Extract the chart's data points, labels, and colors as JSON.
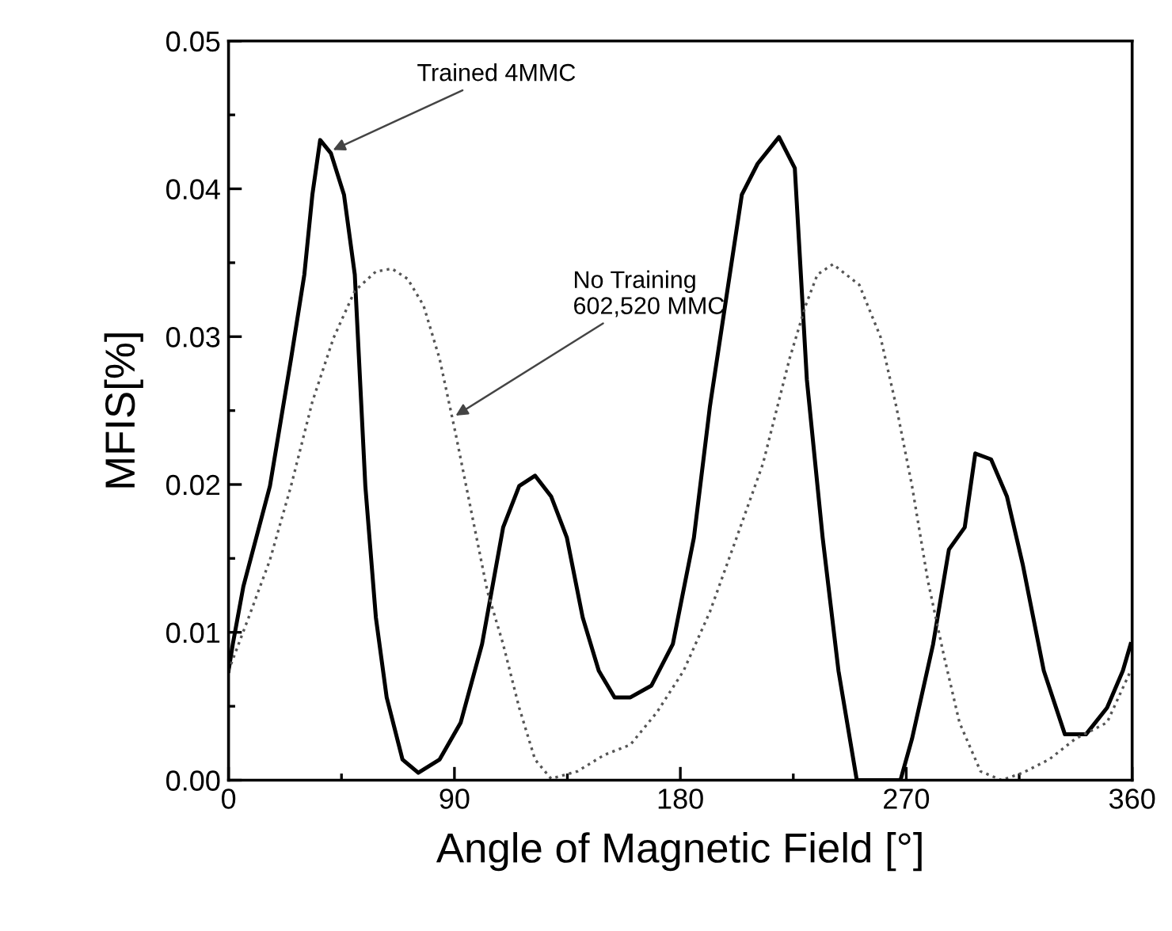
{
  "chart_data": {
    "type": "line",
    "xlabel": "Angle of Magnetic Field [°]",
    "ylabel": "MFIS[%]",
    "xlim": [
      0,
      360
    ],
    "xticks": [
      0,
      90,
      180,
      270,
      360
    ],
    "ylim": [
      0,
      0.05
    ],
    "yticks": [
      {
        "value": 0,
        "label": "0.00"
      },
      {
        "value": 0.01,
        "label": "0.01"
      },
      {
        "value": 0.02,
        "label": "0.02"
      },
      {
        "value": 0.03,
        "label": "0.03"
      },
      {
        "value": 0.04,
        "label": "0.04"
      },
      {
        "value": 0.05,
        "label": "0.05"
      }
    ],
    "grid": false,
    "marker": "none",
    "series": [
      {
        "color": "#000000",
        "line_style": "solid",
        "x": [
          0,
          1.7,
          5.9,
          16.5,
          24.9,
          30.2,
          33.4,
          36.5,
          40.8,
          46,
          50.3,
          54.5,
          58.7,
          63,
          69.3,
          75.6,
          84.1,
          92.5,
          101,
          109.4,
          115.8,
          122.1,
          128.5,
          134.8,
          141.1,
          147.5,
          153.8,
          160.1,
          168.5,
          177,
          185.4,
          191.8,
          198.1,
          204.5,
          210.8,
          219.3,
          225.6,
          230.4,
          236.7,
          243,
          250.3,
          267.7,
          272.3,
          280.7,
          287,
          293.3,
          297.5,
          303.8,
          310.1,
          316.4,
          324.8,
          333.2,
          341.6,
          350,
          356.3,
          359.4
        ],
        "values": [
          0.0074,
          0.0092,
          0.0131,
          0.0199,
          0.0285,
          0.0342,
          0.0396,
          0.0433,
          0.0424,
          0.0396,
          0.0342,
          0.0199,
          0.011,
          0.0056,
          0.0014,
          0.0005,
          0.0014,
          0.0039,
          0.0092,
          0.0171,
          0.0199,
          0.0206,
          0.0192,
          0.0164,
          0.011,
          0.0074,
          0.0056,
          0.0056,
          0.0064,
          0.0092,
          0.0164,
          0.0253,
          0.0324,
          0.0396,
          0.0417,
          0.0435,
          0.0414,
          0.0271,
          0.0164,
          0.0074,
          0,
          0,
          0.0028,
          0.0092,
          0.0156,
          0.0171,
          0.0221,
          0.0217,
          0.0192,
          0.0146,
          0.0074,
          0.0031,
          0.0031,
          0.0049,
          0.0074,
          0.0092
        ]
      },
      {
        "color": "#555555",
        "line_style": "dotted",
        "x": [
          0,
          8,
          16.5,
          24.9,
          33.4,
          41.8,
          50.3,
          58.7,
          65.1,
          71.4,
          77.7,
          84.1,
          90.4,
          96.8,
          103.1,
          109.4,
          115.8,
          122.1,
          128.5,
          139,
          149.6,
          160.1,
          170.7,
          181.3,
          191.8,
          202.4,
          212.9,
          223.5,
          229.9,
          234.6,
          240.8,
          251.3,
          259.7,
          266,
          272.3,
          278.6,
          284.9,
          291.2,
          299.6,
          308,
          316.4,
          326.9,
          337.4,
          350,
          359.4
        ],
        "values": [
          0.0074,
          0.011,
          0.0149,
          0.0199,
          0.0256,
          0.0299,
          0.0331,
          0.0344,
          0.0346,
          0.0339,
          0.0321,
          0.0285,
          0.0235,
          0.0181,
          0.0128,
          0.0092,
          0.0049,
          0.0014,
          0.0001,
          0.0006,
          0.0017,
          0.0024,
          0.0046,
          0.0074,
          0.0114,
          0.0164,
          0.0214,
          0.0285,
          0.0321,
          0.0342,
          0.0349,
          0.0335,
          0.03,
          0.0253,
          0.0199,
          0.0135,
          0.0085,
          0.0039,
          0.0006,
          0,
          0.0005,
          0.0014,
          0.0028,
          0.0039,
          0.0074
        ]
      }
    ],
    "annotations": [
      {
        "text": "Trained 4MMC",
        "x": 40,
        "y": 0.0425
      },
      {
        "text": "No Training\n602,520 MMC",
        "x": 89,
        "y": 0.0245
      }
    ]
  }
}
